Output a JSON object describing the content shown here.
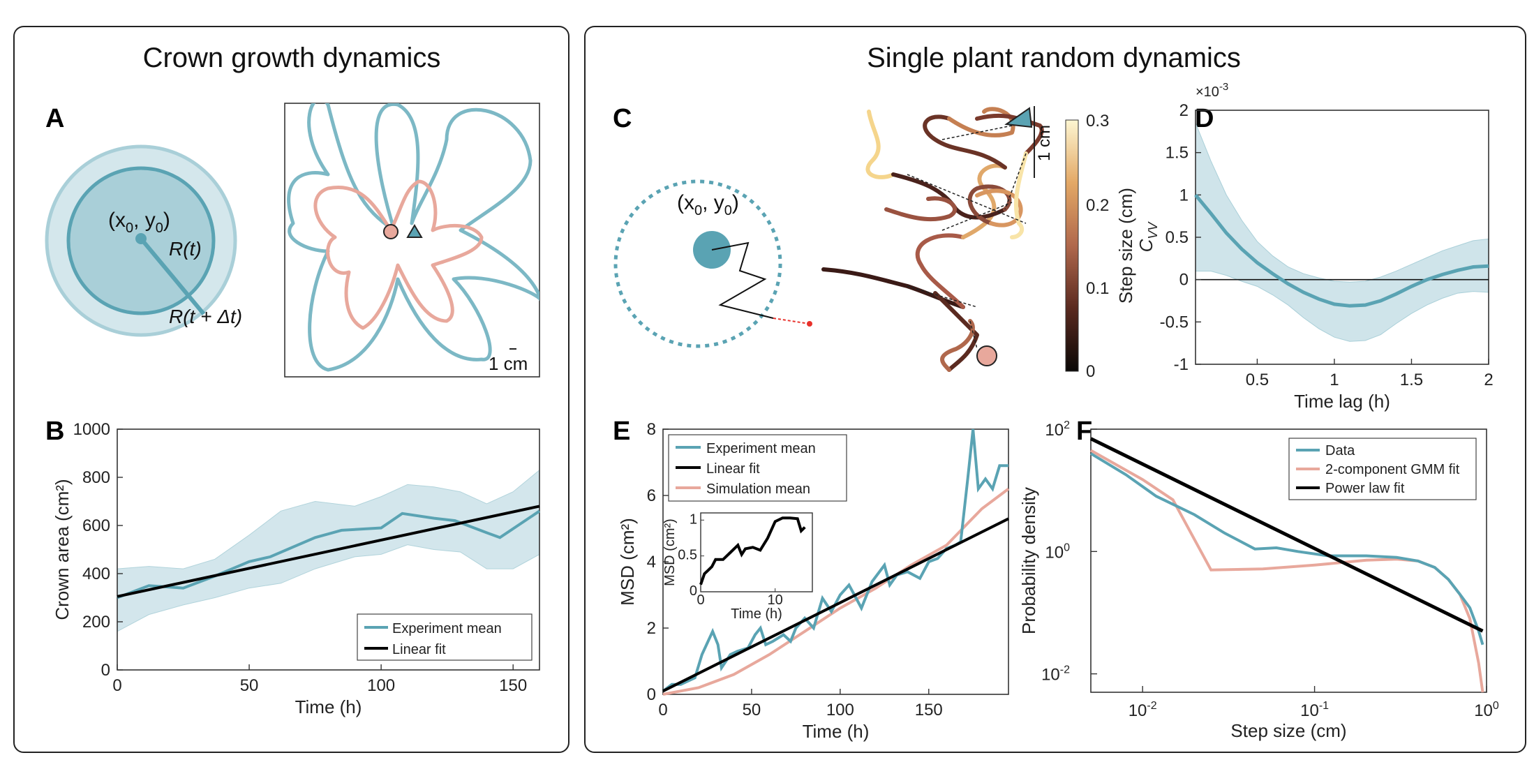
{
  "panels": {
    "left_title": "Crown growth dynamics",
    "right_title": "Single plant random dynamics",
    "letters": [
      "A",
      "B",
      "C",
      "D",
      "E",
      "F"
    ]
  },
  "colors": {
    "teal": "#5aa3b3",
    "teal_light": "#a9cfd8",
    "teal_fill": "#cfe4ea",
    "salmon": "#e8a89c",
    "black": "#000000",
    "red": "#e8312b"
  },
  "panelA": {
    "center_label": "(x",
    "center_sub0": "0",
    "center_sep": ", y",
    "center_sub1": "0",
    "center_close": ")",
    "r_label": "R(t)",
    "r_dt_label": "R(t + Δt)",
    "scale_label": "1 cm"
  },
  "panelC": {
    "center_label": "(x",
    "center_sub0": "0",
    "center_sep": ", y",
    "center_sub1": "0",
    "center_close": ")",
    "scale_label": "1 cm",
    "colorbar_label": "Step size (cm)",
    "colorbar_ticks": [
      "0",
      "0.1",
      "0.2",
      "0.3"
    ]
  },
  "chart_data": [
    {
      "id": "B",
      "type": "line",
      "xlabel": "Time (h)",
      "ylabel": "Crown area (cm²)",
      "xlim": [
        0,
        160
      ],
      "ylim": [
        0,
        1000
      ],
      "xticks": [
        0,
        50,
        100,
        150
      ],
      "yticks": [
        0,
        200,
        400,
        600,
        800,
        1000
      ],
      "series": [
        {
          "name": "Experiment mean",
          "x": [
            0,
            12,
            25,
            37,
            50,
            58,
            75,
            85,
            100,
            108,
            120,
            128,
            140,
            145,
            160
          ],
          "y": [
            300,
            350,
            340,
            390,
            450,
            470,
            550,
            580,
            590,
            650,
            630,
            620,
            570,
            550,
            660
          ]
        },
        {
          "name": "Linear fit",
          "x": [
            0,
            160
          ],
          "y": [
            305,
            680
          ]
        }
      ],
      "band": {
        "x": [
          0,
          12,
          25,
          37,
          50,
          62,
          75,
          90,
          100,
          110,
          120,
          130,
          140,
          150,
          160
        ],
        "upper": [
          420,
          430,
          420,
          460,
          560,
          660,
          700,
          680,
          720,
          770,
          760,
          740,
          690,
          740,
          830
        ],
        "lower": [
          160,
          230,
          270,
          300,
          340,
          360,
          420,
          470,
          480,
          520,
          500,
          490,
          420,
          420,
          480
        ]
      },
      "legend": [
        "Experiment mean",
        "Linear fit"
      ]
    },
    {
      "id": "D",
      "type": "line",
      "xlabel": "Time lag (h)",
      "ylabel": "C_VV",
      "ylabel_main": "C",
      "ylabel_sub": "VV",
      "multiplier": "×10",
      "multiplier_exp": "-3",
      "xlim": [
        0.1,
        2
      ],
      "ylim": [
        -1,
        2
      ],
      "xticks": [
        0.5,
        1,
        1.5,
        2
      ],
      "yticks": [
        -1,
        -0.5,
        0,
        0.5,
        1,
        1.5,
        2
      ],
      "series": [
        {
          "name": "mean",
          "x": [
            0.1,
            0.2,
            0.3,
            0.4,
            0.5,
            0.6,
            0.7,
            0.8,
            0.9,
            1.0,
            1.1,
            1.2,
            1.3,
            1.4,
            1.5,
            1.6,
            1.7,
            1.8,
            1.9,
            2.0
          ],
          "y": [
            1.0,
            0.78,
            0.55,
            0.36,
            0.2,
            0.07,
            -0.05,
            -0.15,
            -0.23,
            -0.29,
            -0.31,
            -0.3,
            -0.25,
            -0.17,
            -0.08,
            0.0,
            0.06,
            0.11,
            0.15,
            0.16
          ]
        }
      ],
      "band": {
        "x": [
          0.1,
          0.2,
          0.3,
          0.4,
          0.5,
          0.6,
          0.7,
          0.8,
          0.9,
          1.0,
          1.1,
          1.2,
          1.3,
          1.4,
          1.5,
          1.6,
          1.7,
          1.8,
          1.9,
          2.0
        ],
        "upper": [
          1.85,
          1.4,
          1.0,
          0.7,
          0.45,
          0.28,
          0.15,
          0.07,
          0.02,
          -0.02,
          -0.03,
          -0.02,
          0.03,
          0.1,
          0.18,
          0.26,
          0.34,
          0.4,
          0.46,
          0.48
        ],
        "lower": [
          0.1,
          0.1,
          0.05,
          -0.02,
          -0.08,
          -0.18,
          -0.3,
          -0.45,
          -0.58,
          -0.68,
          -0.73,
          -0.72,
          -0.65,
          -0.52,
          -0.4,
          -0.3,
          -0.22,
          -0.16,
          -0.14,
          -0.15
        ]
      }
    },
    {
      "id": "E",
      "type": "line",
      "xlabel": "Time (h)",
      "ylabel": "MSD (cm²)",
      "xlim": [
        0,
        195
      ],
      "ylim": [
        0,
        8
      ],
      "xticks": [
        0,
        50,
        100,
        150
      ],
      "yticks": [
        0,
        2,
        4,
        6,
        8
      ],
      "series": [
        {
          "name": "Experiment mean",
          "x": [
            0,
            5,
            10,
            18,
            22,
            28,
            31,
            33,
            38,
            42,
            48,
            52,
            55,
            58,
            62,
            68,
            72,
            75,
            80,
            85,
            90,
            95,
            100,
            105,
            108,
            112,
            118,
            125,
            128,
            132,
            138,
            145,
            150,
            155,
            160,
            165,
            168,
            172,
            175,
            178,
            182,
            186,
            190,
            195
          ],
          "y": [
            0.1,
            0.3,
            0.3,
            0.5,
            1.2,
            1.9,
            1.5,
            0.8,
            1.2,
            1.3,
            1.4,
            1.8,
            2.0,
            1.5,
            1.6,
            1.8,
            1.6,
            2.0,
            2.3,
            2.0,
            2.9,
            2.5,
            3.0,
            3.3,
            3.0,
            2.6,
            3.4,
            3.9,
            3.3,
            3.6,
            3.7,
            3.5,
            4.0,
            4.1,
            4.4,
            4.5,
            4.6,
            6.5,
            8.0,
            6.2,
            6.5,
            6.2,
            6.9,
            6.9
          ]
        },
        {
          "name": "Linear fit",
          "x": [
            0,
            195
          ],
          "y": [
            0.1,
            5.3
          ]
        },
        {
          "name": "Simulation mean",
          "x": [
            0,
            20,
            40,
            60,
            80,
            100,
            120,
            140,
            160,
            180,
            195
          ],
          "y": [
            0.0,
            0.2,
            0.6,
            1.2,
            1.9,
            2.6,
            3.2,
            3.9,
            4.5,
            5.6,
            6.2
          ]
        }
      ],
      "legend": [
        "Experiment mean",
        "Linear fit",
        "Simulation mean"
      ],
      "inset": {
        "xlabel": "Time (h)",
        "ylabel": "MSD (cm²)",
        "xlim": [
          0,
          15
        ],
        "ylim": [
          0,
          1.1
        ],
        "xticks": [
          0,
          10
        ],
        "yticks": [
          0,
          0.5,
          1
        ],
        "x": [
          0,
          0.5,
          1,
          1.5,
          2,
          3,
          4,
          5,
          5.5,
          6,
          7,
          8,
          9,
          10,
          11,
          12,
          13,
          13.5,
          14
        ],
        "y": [
          0.1,
          0.25,
          0.3,
          0.35,
          0.45,
          0.45,
          0.55,
          0.65,
          0.52,
          0.6,
          0.62,
          0.58,
          0.75,
          0.98,
          1.03,
          1.03,
          1.02,
          0.85,
          0.9
        ]
      }
    },
    {
      "id": "F",
      "type": "line",
      "xscale": "log",
      "yscale": "log",
      "xlabel": "Step size (cm)",
      "ylabel": "Probability density",
      "xlim": [
        0.005,
        1
      ],
      "ylim": [
        0.005,
        100
      ],
      "xtick_bases": [
        "10",
        "10",
        "10"
      ],
      "xtick_exps": [
        "-2",
        "-1",
        "0"
      ],
      "ytick_bases": [
        "10",
        "10",
        "10"
      ],
      "ytick_exps": [
        "-2",
        "0",
        "2"
      ],
      "series": [
        {
          "name": "Data",
          "x": [
            0.005,
            0.008,
            0.012,
            0.02,
            0.03,
            0.045,
            0.06,
            0.08,
            0.12,
            0.2,
            0.3,
            0.4,
            0.5,
            0.6,
            0.7,
            0.8,
            0.9,
            0.95
          ],
          "y": [
            40,
            18,
            8,
            4,
            2,
            1.1,
            1.15,
            1.0,
            0.85,
            0.85,
            0.8,
            0.7,
            0.55,
            0.35,
            0.2,
            0.12,
            0.05,
            0.03
          ]
        },
        {
          "name": "2-component GMM fit",
          "x": [
            0.005,
            0.01,
            0.015,
            0.025,
            0.05,
            0.1,
            0.2,
            0.3,
            0.4,
            0.5,
            0.6,
            0.7,
            0.8,
            0.9,
            0.95
          ],
          "y": [
            45,
            15,
            7,
            0.5,
            0.52,
            0.6,
            0.72,
            0.75,
            0.7,
            0.55,
            0.35,
            0.2,
            0.08,
            0.015,
            0.005
          ]
        },
        {
          "name": "Power law fit",
          "x": [
            0.005,
            0.95
          ],
          "y": [
            70,
            0.05
          ]
        }
      ],
      "legend": [
        "Data",
        "2-component GMM fit",
        "Power law fit"
      ]
    }
  ]
}
